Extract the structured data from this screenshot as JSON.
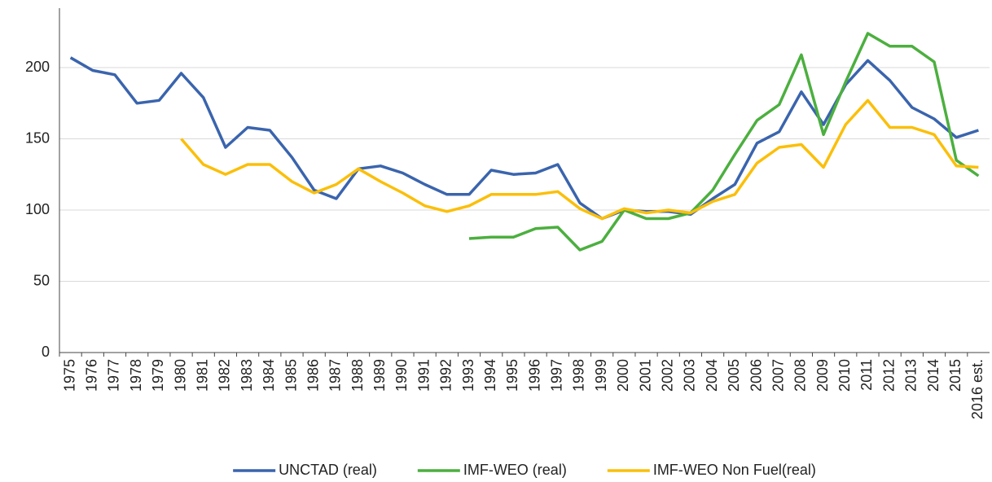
{
  "chart_data": {
    "type": "line",
    "categories": [
      "1975",
      "1976",
      "1977",
      "1978",
      "1979",
      "1980",
      "1981",
      "1982",
      "1983",
      "1984",
      "1985",
      "1986",
      "1987",
      "1988",
      "1989",
      "1990",
      "1991",
      "1992",
      "1993",
      "1994",
      "1995",
      "1996",
      "1997",
      "1998",
      "1999",
      "2000",
      "2001",
      "2002",
      "2003",
      "2004",
      "2005",
      "2006",
      "2007",
      "2008",
      "2009",
      "2010",
      "2011",
      "2012",
      "2013",
      "2014",
      "2015",
      "2016 est."
    ],
    "series": [
      {
        "name": "UNCTAD (real)",
        "color": "#3a64ad",
        "values": [
          207,
          198,
          195,
          175,
          177,
          196,
          179,
          144,
          158,
          156,
          137,
          114,
          108,
          129,
          131,
          126,
          118,
          111,
          111,
          128,
          125,
          126,
          132,
          105,
          94,
          100,
          99,
          99,
          97,
          108,
          118,
          147,
          155,
          183,
          160,
          188,
          205,
          191,
          172,
          164,
          151,
          156
        ]
      },
      {
        "name": "IMF-WEO (real)",
        "color": "#4caf3f",
        "values": [
          null,
          null,
          null,
          null,
          null,
          null,
          null,
          null,
          null,
          null,
          null,
          null,
          null,
          null,
          null,
          null,
          null,
          null,
          80,
          81,
          81,
          87,
          88,
          72,
          78,
          100,
          94,
          94,
          98,
          114,
          139,
          163,
          174,
          209,
          153,
          190,
          224,
          215,
          215,
          204,
          135,
          124
        ]
      },
      {
        "name": "IMF-WEO Non Fuel(real)",
        "color": "#fbbf0a",
        "values": [
          null,
          null,
          null,
          null,
          null,
          150,
          132,
          125,
          132,
          132,
          120,
          112,
          118,
          129,
          120,
          112,
          103,
          99,
          103,
          111,
          111,
          111,
          113,
          101,
          94,
          101,
          98,
          100,
          98,
          106,
          111,
          133,
          144,
          146,
          130,
          160,
          177,
          158,
          158,
          153,
          131,
          130
        ]
      }
    ],
    "ylim": [
      0,
      240
    ],
    "yticks": [
      0,
      50,
      100,
      150,
      200
    ],
    "grid": true,
    "legend": "bottom"
  }
}
